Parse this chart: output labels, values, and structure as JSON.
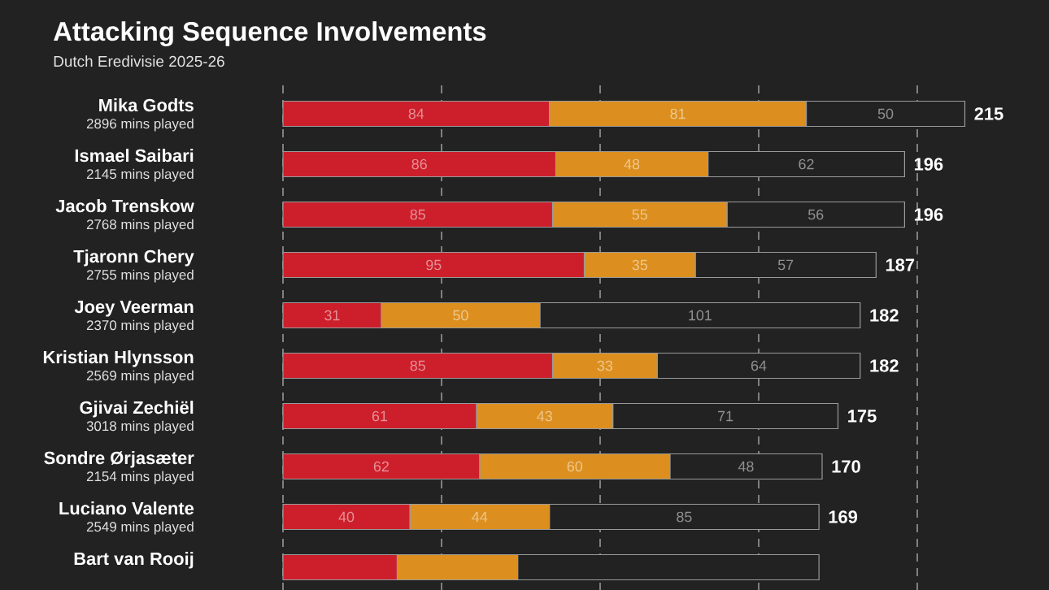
{
  "chart_data": {
    "type": "bar",
    "orientation": "horizontal",
    "stacked": true,
    "title": "Attacking Sequence Involvements",
    "subtitle": "Dutch Eredivisie 2025-26",
    "categories": [
      "Mika Godts",
      "Ismael Saibari",
      "Jacob Trenskow",
      "Tjaronn Chery",
      "Joey Veerman",
      "Kristian Hlynsson",
      "Gjivai Zechiël",
      "Sondre Ørjasæter",
      "Luciano Valente",
      "Bart van Rooij"
    ],
    "annotations": [
      "2896 mins played",
      "2145 mins played",
      "2768 mins played",
      "2755 mins played",
      "2370 mins played",
      "2569 mins played",
      "3018 mins played",
      "2154 mins played",
      "2549 mins played"
    ],
    "series": [
      {
        "color": "#cc1f2b",
        "values": [
          84,
          86,
          85,
          95,
          31,
          85,
          61,
          62,
          40,
          36
        ],
        "value_labels": [
          "84",
          "86",
          "85",
          "95",
          "31",
          "85",
          "61",
          "62",
          "40",
          null
        ]
      },
      {
        "color": "#dc8f1e",
        "values": [
          81,
          48,
          55,
          35,
          50,
          33,
          43,
          60,
          44,
          38
        ],
        "value_labels": [
          "81",
          "48",
          "55",
          "35",
          "50",
          "33",
          "43",
          "60",
          "44",
          null
        ]
      },
      {
        "color": "#222222",
        "values": [
          50,
          62,
          56,
          57,
          101,
          64,
          71,
          48,
          85,
          95
        ],
        "value_labels": [
          "50",
          "62",
          "56",
          "57",
          "101",
          "64",
          "71",
          "48",
          "85",
          null
        ]
      }
    ],
    "totals": [
      "215",
      "196",
      "196",
      "187",
      "182",
      "182",
      "175",
      "170",
      "169",
      null
    ],
    "xlim": [
      0,
      215
    ],
    "xticks": [
      {
        "value": 0,
        "label": null
      },
      {
        "value": 50,
        "label": null
      },
      {
        "value": 100,
        "label": null
      },
      {
        "value": 150,
        "label": null
      },
      {
        "value": 200,
        "label": null
      }
    ],
    "grid": "x",
    "tick_labels": "y"
  }
}
